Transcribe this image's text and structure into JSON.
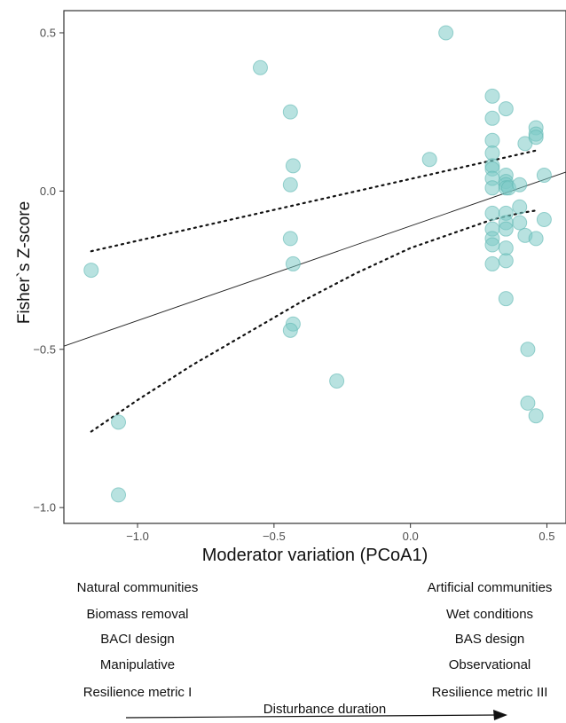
{
  "chart_data": {
    "type": "scatter",
    "xlabel": "Moderator variation (PCoA1)",
    "ylabel": "Fisher`s Z-score",
    "xlim": [
      -1.27,
      0.57
    ],
    "ylim": [
      -1.05,
      0.57
    ],
    "x_ticks": [
      -1.0,
      -0.5,
      0.0,
      0.5
    ],
    "x_tick_labels": [
      "−1.0",
      "−0.5",
      "0.0",
      "0.5"
    ],
    "y_ticks": [
      0.5,
      0.0,
      -0.5,
      -1.0
    ],
    "y_tick_labels": [
      "0.5",
      "0.0",
      "−0.5",
      "−1.0"
    ],
    "grid": false,
    "point_color": "#7ecac6",
    "point_edge_color": "#5fb8b3",
    "points": [
      {
        "x": -1.17,
        "y": -0.25
      },
      {
        "x": -1.07,
        "y": -0.73
      },
      {
        "x": -1.07,
        "y": -0.96
      },
      {
        "x": -0.55,
        "y": 0.39
      },
      {
        "x": -0.44,
        "y": 0.25
      },
      {
        "x": -0.43,
        "y": 0.08
      },
      {
        "x": -0.44,
        "y": 0.02
      },
      {
        "x": -0.44,
        "y": -0.15
      },
      {
        "x": -0.43,
        "y": -0.23
      },
      {
        "x": -0.43,
        "y": -0.42
      },
      {
        "x": -0.44,
        "y": -0.44
      },
      {
        "x": -0.27,
        "y": -0.6
      },
      {
        "x": 0.07,
        "y": 0.1
      },
      {
        "x": 0.13,
        "y": 0.5
      },
      {
        "x": 0.3,
        "y": 0.3
      },
      {
        "x": 0.3,
        "y": 0.23
      },
      {
        "x": 0.3,
        "y": 0.16
      },
      {
        "x": 0.3,
        "y": 0.12
      },
      {
        "x": 0.3,
        "y": 0.08
      },
      {
        "x": 0.3,
        "y": 0.07
      },
      {
        "x": 0.3,
        "y": 0.04
      },
      {
        "x": 0.3,
        "y": 0.01
      },
      {
        "x": 0.3,
        "y": -0.07
      },
      {
        "x": 0.3,
        "y": -0.12
      },
      {
        "x": 0.3,
        "y": -0.15
      },
      {
        "x": 0.3,
        "y": -0.17
      },
      {
        "x": 0.3,
        "y": -0.23
      },
      {
        "x": 0.35,
        "y": 0.26
      },
      {
        "x": 0.35,
        "y": 0.05
      },
      {
        "x": 0.35,
        "y": 0.03
      },
      {
        "x": 0.35,
        "y": 0.02
      },
      {
        "x": 0.35,
        "y": 0.01
      },
      {
        "x": 0.36,
        "y": 0.01
      },
      {
        "x": 0.35,
        "y": -0.07
      },
      {
        "x": 0.35,
        "y": -0.1
      },
      {
        "x": 0.35,
        "y": -0.12
      },
      {
        "x": 0.35,
        "y": -0.18
      },
      {
        "x": 0.35,
        "y": -0.22
      },
      {
        "x": 0.35,
        "y": -0.34
      },
      {
        "x": 0.4,
        "y": 0.02
      },
      {
        "x": 0.4,
        "y": -0.05
      },
      {
        "x": 0.4,
        "y": -0.1
      },
      {
        "x": 0.42,
        "y": 0.15
      },
      {
        "x": 0.42,
        "y": -0.14
      },
      {
        "x": 0.43,
        "y": -0.5
      },
      {
        "x": 0.43,
        "y": -0.67
      },
      {
        "x": 0.46,
        "y": 0.2
      },
      {
        "x": 0.46,
        "y": 0.18
      },
      {
        "x": 0.46,
        "y": 0.17
      },
      {
        "x": 0.46,
        "y": -0.15
      },
      {
        "x": 0.46,
        "y": -0.71
      },
      {
        "x": 0.49,
        "y": 0.05
      },
      {
        "x": 0.49,
        "y": -0.09
      }
    ],
    "fit_line": {
      "x": [
        -1.27,
        0.57
      ],
      "y": [
        -0.49,
        0.06
      ]
    },
    "ci_upper": {
      "x": [
        -1.17,
        0.47
      ],
      "y": [
        -0.19,
        0.13
      ]
    },
    "ci_lower": {
      "x": [
        -1.17,
        -1.0,
        -0.8,
        -0.6,
        -0.4,
        -0.2,
        0.0,
        0.2,
        0.3,
        0.4,
        0.47
      ],
      "y": [
        -0.76,
        -0.66,
        -0.55,
        -0.45,
        -0.35,
        -0.26,
        -0.18,
        -0.12,
        -0.09,
        -0.07,
        -0.06
      ]
    }
  },
  "captions": {
    "left": [
      "Natural communities",
      "Biomass removal",
      "BACI design",
      "Manipulative",
      "Resilience metric I"
    ],
    "right": [
      "Artificial communities",
      "Wet conditions",
      "BAS design",
      "Observational",
      "Resilience metric III"
    ],
    "arrow_label": "Disturbance duration"
  }
}
